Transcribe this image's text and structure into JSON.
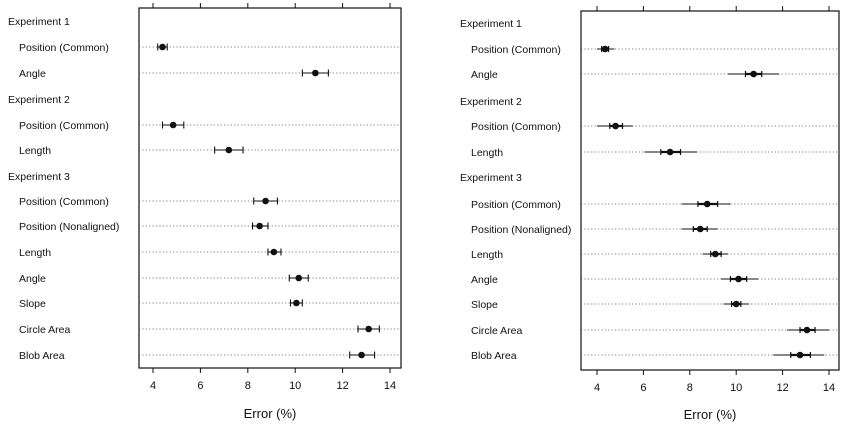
{
  "chart_data": [
    {
      "type": "dot-interval",
      "xlabel": "Error (%)",
      "xlim": [
        3.4,
        14.6
      ],
      "xticks": [
        4,
        6,
        8,
        10,
        12,
        14
      ],
      "grid": "dotted horizontal guide lines per row",
      "rows": [
        {
          "kind": "group",
          "label": "Experiment 1"
        },
        {
          "kind": "item",
          "label": "Position (Common)",
          "value": 4.4,
          "ci": [
            4.2,
            4.6
          ]
        },
        {
          "kind": "item",
          "label": "Angle",
          "value": 10.85,
          "ci": [
            10.3,
            11.4
          ]
        },
        {
          "kind": "group",
          "label": "Experiment 2"
        },
        {
          "kind": "item",
          "label": "Position (Common)",
          "value": 4.85,
          "ci": [
            4.4,
            5.3
          ]
        },
        {
          "kind": "item",
          "label": "Length",
          "value": 7.2,
          "ci": [
            6.6,
            7.8
          ]
        },
        {
          "kind": "group",
          "label": "Experiment 3"
        },
        {
          "kind": "item",
          "label": "Position (Common)",
          "value": 8.75,
          "ci": [
            8.25,
            9.25
          ]
        },
        {
          "kind": "item",
          "label": "Position (Nonaligned)",
          "value": 8.5,
          "ci": [
            8.2,
            8.85
          ]
        },
        {
          "kind": "item",
          "label": "Length",
          "value": 9.1,
          "ci": [
            8.85,
            9.4
          ]
        },
        {
          "kind": "item",
          "label": "Angle",
          "value": 10.15,
          "ci": [
            9.75,
            10.55
          ]
        },
        {
          "kind": "item",
          "label": "Slope",
          "value": 10.05,
          "ci": [
            9.8,
            10.3
          ]
        },
        {
          "kind": "item",
          "label": "Circle Area",
          "value": 13.1,
          "ci": [
            12.65,
            13.55
          ]
        },
        {
          "kind": "item",
          "label": "Blob Area",
          "value": 12.8,
          "ci": [
            12.3,
            13.35
          ]
        }
      ]
    },
    {
      "type": "dot-interval",
      "xlabel": "Error (%)",
      "xlim": [
        3.4,
        14.6
      ],
      "xticks": [
        4,
        6,
        8,
        10,
        12,
        14
      ],
      "grid": "dotted horizontal guide lines per row",
      "rows": [
        {
          "kind": "group",
          "label": "Experiment 1"
        },
        {
          "kind": "item",
          "label": "Position (Common)",
          "value": 4.35,
          "ci_inner": [
            4.2,
            4.5
          ],
          "ci_outer": [
            4.0,
            4.75
          ]
        },
        {
          "kind": "item",
          "label": "Angle",
          "value": 10.75,
          "ci_inner": [
            10.4,
            11.1
          ],
          "ci_outer": [
            9.65,
            11.85
          ]
        },
        {
          "kind": "group",
          "label": "Experiment 2"
        },
        {
          "kind": "item",
          "label": "Position (Common)",
          "value": 4.8,
          "ci_inner": [
            4.55,
            5.1
          ],
          "ci_outer": [
            4.0,
            5.55
          ]
        },
        {
          "kind": "item",
          "label": "Length",
          "value": 7.15,
          "ci_inner": [
            6.75,
            7.6
          ],
          "ci_outer": [
            6.05,
            8.3
          ]
        },
        {
          "kind": "group",
          "label": "Experiment 3"
        },
        {
          "kind": "item",
          "label": "Position (Common)",
          "value": 8.75,
          "ci_inner": [
            8.35,
            9.2
          ],
          "ci_outer": [
            7.65,
            9.75
          ]
        },
        {
          "kind": "item",
          "label": "Position (Nonaligned)",
          "value": 8.45,
          "ci_inner": [
            8.15,
            8.75
          ],
          "ci_outer": [
            7.65,
            9.2
          ]
        },
        {
          "kind": "item",
          "label": "Length",
          "value": 9.1,
          "ci_inner": [
            8.9,
            9.35
          ],
          "ci_outer": [
            8.55,
            9.65
          ]
        },
        {
          "kind": "item",
          "label": "Angle",
          "value": 10.1,
          "ci_inner": [
            9.75,
            10.45
          ],
          "ci_outer": [
            9.35,
            10.95
          ]
        },
        {
          "kind": "item",
          "label": "Slope",
          "value": 10.0,
          "ci_inner": [
            9.8,
            10.2
          ],
          "ci_outer": [
            9.45,
            10.55
          ]
        },
        {
          "kind": "item",
          "label": "Circle Area",
          "value": 13.05,
          "ci_inner": [
            12.75,
            13.4
          ],
          "ci_outer": [
            12.2,
            14.0
          ]
        },
        {
          "kind": "item",
          "label": "Blob Area",
          "value": 12.75,
          "ci_inner": [
            12.35,
            13.2
          ],
          "ci_outer": [
            11.6,
            13.8
          ]
        }
      ]
    }
  ]
}
